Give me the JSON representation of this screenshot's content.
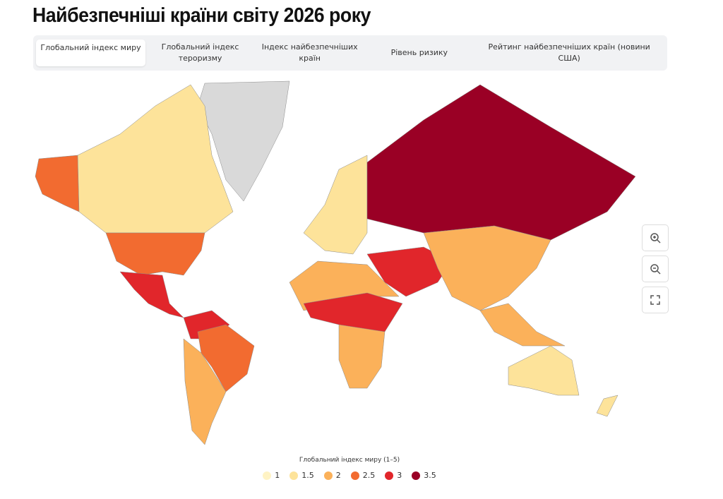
{
  "header": {
    "title": "Найбезпечніші країни світу 2026 року"
  },
  "tabs": [
    "Глобальний індекс миру",
    "Глобальний індекс тероризму",
    "Індекс найбезпечніших країн",
    "Рівень ризику",
    "Рейтинг найбезпечніших країн (новини США)"
  ],
  "legend": {
    "title": "Глобальний індекс миру (1–5)",
    "items": [
      {
        "value": 1,
        "color": "#fff3c4"
      },
      {
        "value": 1.5,
        "color": "#fde39a"
      },
      {
        "value": 2,
        "color": "#fbb15a"
      },
      {
        "value": 2.5,
        "color": "#f26b30"
      },
      {
        "value": 3,
        "color": "#e1262b"
      },
      {
        "value": 3.5,
        "color": "#9a0025"
      }
    ]
  }
}
